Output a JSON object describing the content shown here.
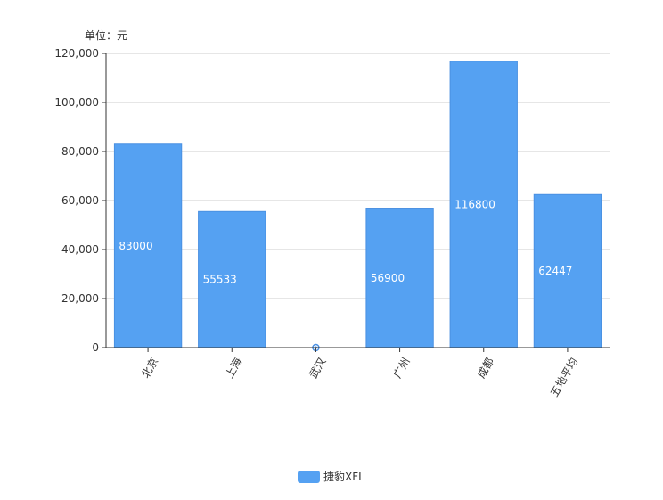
{
  "chart_data": {
    "type": "bar",
    "unit_label": "单位：元",
    "categories": [
      "北京",
      "上海",
      "武汉",
      "广州",
      "成都",
      "五地平均"
    ],
    "series": [
      {
        "name": "捷豹XFL",
        "values": [
          83000,
          55533,
          0,
          56900,
          116800,
          62447
        ],
        "data_labels": [
          "83000",
          "55533",
          "",
          "56900",
          "116800",
          "62447"
        ]
      }
    ],
    "ylim": [
      0,
      120000
    ],
    "yticks": [
      0,
      20000,
      40000,
      60000,
      80000,
      100000,
      120000
    ],
    "ytick_labels": [
      "0",
      "20,000",
      "40,000",
      "60,000",
      "80,000",
      "100,000",
      "120,000"
    ],
    "grid": true,
    "legend_position": "bottom-center",
    "colors": {
      "bar": "#55a1f2",
      "bar_stroke": "#4a90e2",
      "grid": "#cccccc",
      "axis": "#333333",
      "text": "#333333",
      "data_label": "#ffffff"
    }
  }
}
